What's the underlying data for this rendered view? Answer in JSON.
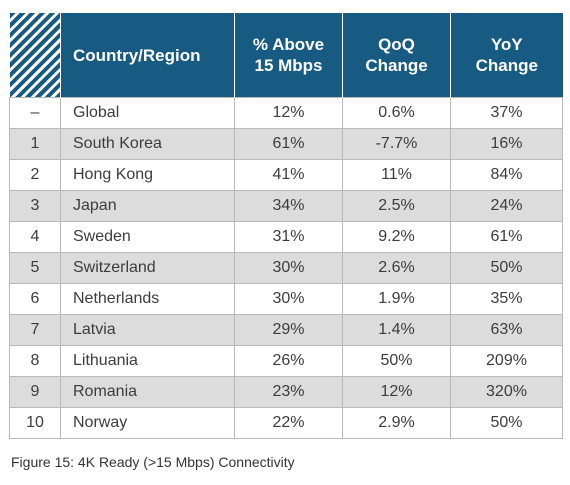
{
  "table": {
    "headers": {
      "country": "Country/Region",
      "pct_above_line1": "% Above",
      "pct_above_line2": "15 Mbps",
      "qoq_line1": "QoQ",
      "qoq_line2": "Change",
      "yoy_line1": "YoY",
      "yoy_line2": "Change"
    },
    "rows": [
      {
        "rank": "–",
        "country": "Global",
        "pct": "12%",
        "qoq": "0.6%",
        "yoy": "37%"
      },
      {
        "rank": "1",
        "country": "South Korea",
        "pct": "61%",
        "qoq": "-7.7%",
        "yoy": "16%"
      },
      {
        "rank": "2",
        "country": "Hong Kong",
        "pct": "41%",
        "qoq": "11%",
        "yoy": "84%"
      },
      {
        "rank": "3",
        "country": "Japan",
        "pct": "34%",
        "qoq": "2.5%",
        "yoy": "24%"
      },
      {
        "rank": "4",
        "country": "Sweden",
        "pct": "31%",
        "qoq": "9.2%",
        "yoy": "61%"
      },
      {
        "rank": "5",
        "country": "Switzerland",
        "pct": "30%",
        "qoq": "2.6%",
        "yoy": "50%"
      },
      {
        "rank": "6",
        "country": "Netherlands",
        "pct": "30%",
        "qoq": "1.9%",
        "yoy": "35%"
      },
      {
        "rank": "7",
        "country": "Latvia",
        "pct": "29%",
        "qoq": "1.4%",
        "yoy": "63%"
      },
      {
        "rank": "8",
        "country": "Lithuania",
        "pct": "26%",
        "qoq": "50%",
        "yoy": "209%"
      },
      {
        "rank": "9",
        "country": "Romania",
        "pct": "23%",
        "qoq": "12%",
        "yoy": "320%"
      },
      {
        "rank": "10",
        "country": "Norway",
        "pct": "22%",
        "qoq": "2.9%",
        "yoy": "50%"
      }
    ]
  },
  "caption": "Figure 15: 4K Ready (>15 Mbps) Connectivity",
  "colors": {
    "header_bg": "#175a82",
    "header_text": "#ffffff",
    "stripe_bg": "#dcdcdc"
  }
}
